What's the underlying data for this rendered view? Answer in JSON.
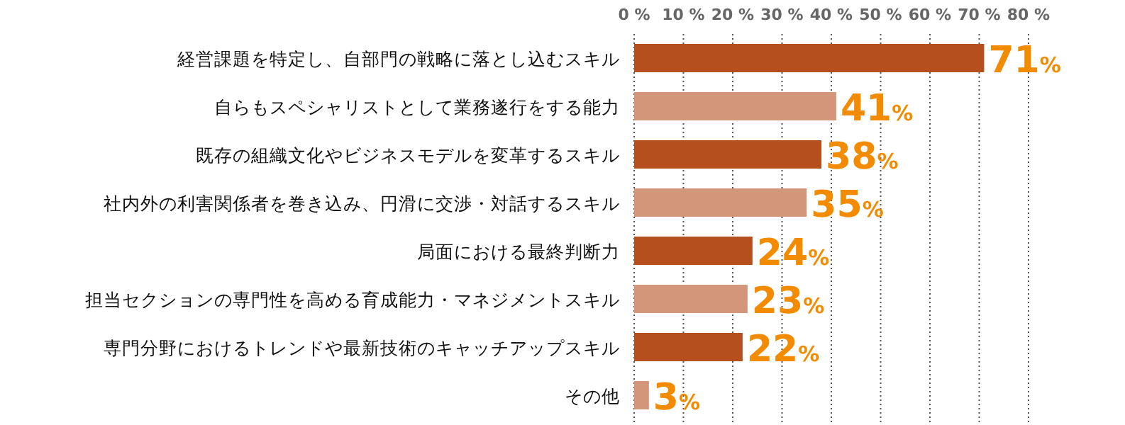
{
  "chart_data": {
    "type": "bar",
    "orientation": "horizontal",
    "categories": [
      "経営課題を特定し、自部門の戦略に落とし込むスキル",
      "自らもスペシャリストとして業務遂行をする能力",
      "既存の組織文化やビジネスモデルを変革するスキル",
      "社内外の利害関係者を巻き込み、円滑に交渉・対話するスキル",
      "局面における最終判断力",
      "担当セクションの専門性を高める育成能力・マネジメントスキル",
      "専門分野におけるトレンドや最新技術のキャッチアップスキル",
      "その他"
    ],
    "values": [
      71,
      41,
      38,
      35,
      24,
      23,
      22,
      3
    ],
    "colors": [
      "#b5501e",
      "#d3967a",
      "#b5501e",
      "#d3967a",
      "#b5501e",
      "#d3967a",
      "#b5501e",
      "#d3967a"
    ],
    "value_labels": [
      "71%",
      "41%",
      "38%",
      "35%",
      "24%",
      "23%",
      "22%",
      "3%"
    ],
    "xlim": [
      0,
      80
    ],
    "xticks": [
      {
        "value": 0,
        "label": "0 %"
      },
      {
        "value": 10,
        "label": "10 %"
      },
      {
        "value": 20,
        "label": "20 %"
      },
      {
        "value": 30,
        "label": "30 %"
      },
      {
        "value": 40,
        "label": "40 %"
      },
      {
        "value": 50,
        "label": "50 %"
      },
      {
        "value": 60,
        "label": "60 %"
      },
      {
        "value": 70,
        "label": "70 %"
      },
      {
        "value": 80,
        "label": "80 %"
      }
    ],
    "grid": "x"
  }
}
